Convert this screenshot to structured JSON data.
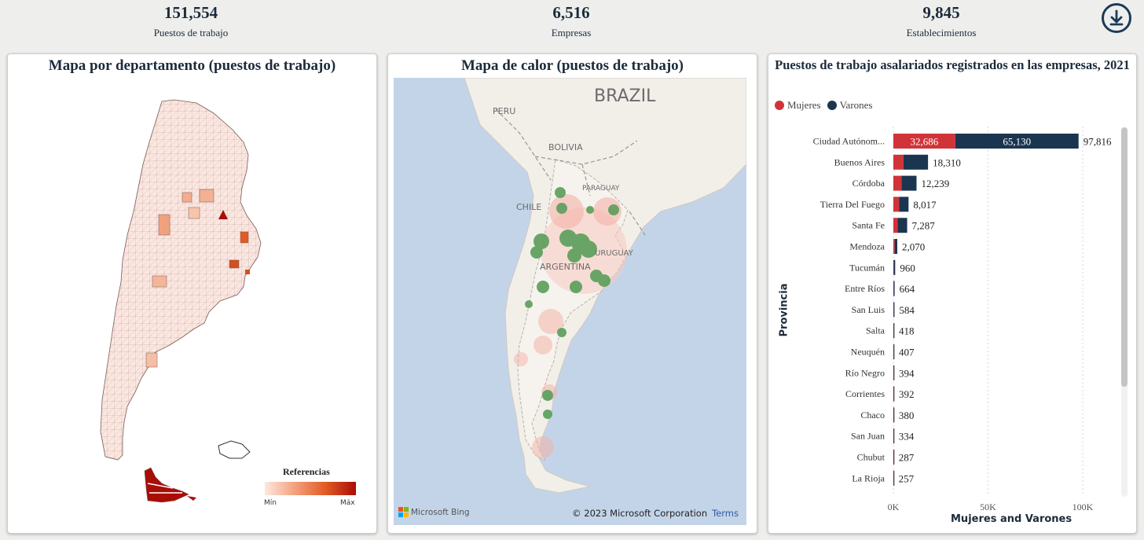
{
  "kpis": [
    {
      "value": "151,554",
      "label": "Puestos de trabajo"
    },
    {
      "value": "6,516",
      "label": "Empresas"
    },
    {
      "value": "9,845",
      "label": "Establecimientos"
    }
  ],
  "toolbar": {
    "download_icon": "download-icon"
  },
  "map1": {
    "title": "Mapa por departamento (puestos de trabajo)",
    "legend": {
      "title": "Referencias",
      "min": "Mín",
      "max": "Máx"
    },
    "colors": {
      "low": "#fde8df",
      "high": "#a80d06"
    }
  },
  "map2": {
    "title": "Mapa de calor (puestos de trabajo)",
    "labels": {
      "brazil": "BRAZIL",
      "peru": "PERU",
      "bolivia": "BOLIVIA",
      "paraguay": "PARAGUAY",
      "chile": "CHILE",
      "uruguay": "URUGUAY",
      "argentina": "ARGENTINA"
    },
    "brand": "Microsoft Bing",
    "copyright": "© 2023 Microsoft Corporation",
    "terms": "Terms"
  },
  "chart3": {
    "title": "Puestos de trabajo asalariados registrados en las empresas, 2021",
    "legend": [
      {
        "name": "Mujeres",
        "color": "#d13438"
      },
      {
        "name": "Varones",
        "color": "#1b3550"
      }
    ],
    "ylabel": "Provincia",
    "xlabel": "Mujeres and Varones"
  },
  "chart_data": {
    "type": "bar",
    "orientation": "horizontal",
    "stacked": true,
    "title": "Puestos de trabajo asalariados registrados en las empresas, 2021",
    "xlabel": "Mujeres and Varones",
    "ylabel": "Provincia",
    "xlim": [
      0,
      100000
    ],
    "xticks": [
      "0K",
      "50K",
      "100K"
    ],
    "categories": [
      "Ciudad Autónom...",
      "Buenos Aires",
      "Córdoba",
      "Tierra Del Fuego",
      "Santa Fe",
      "Mendoza",
      "Tucumán",
      "Entre Ríos",
      "San Luis",
      "Salta",
      "Neuquén",
      "Río Negro",
      "Corrientes",
      "Chaco",
      "San Juan",
      "Chubut",
      "La Rioja"
    ],
    "totals": [
      "97,816",
      "18,310",
      "12,239",
      "8,017",
      "7,287",
      "2,070",
      "960",
      "664",
      "584",
      "418",
      "407",
      "394",
      "392",
      "380",
      "334",
      "287",
      "257"
    ],
    "series": [
      {
        "name": "Mujeres",
        "values": [
          32686,
          5300,
          4300,
          3000,
          2300,
          700,
          260,
          180,
          160,
          120,
          110,
          110,
          100,
          100,
          90,
          80,
          70
        ]
      },
      {
        "name": "Varones",
        "values": [
          65130,
          13010,
          7939,
          5017,
          4987,
          1370,
          700,
          484,
          424,
          298,
          297,
          284,
          292,
          280,
          244,
          207,
          187
        ]
      }
    ],
    "data_labels": {
      "mujeres_first": "32,686",
      "varones_first": "65,130"
    },
    "legend_position": "top-left",
    "grid": true
  }
}
